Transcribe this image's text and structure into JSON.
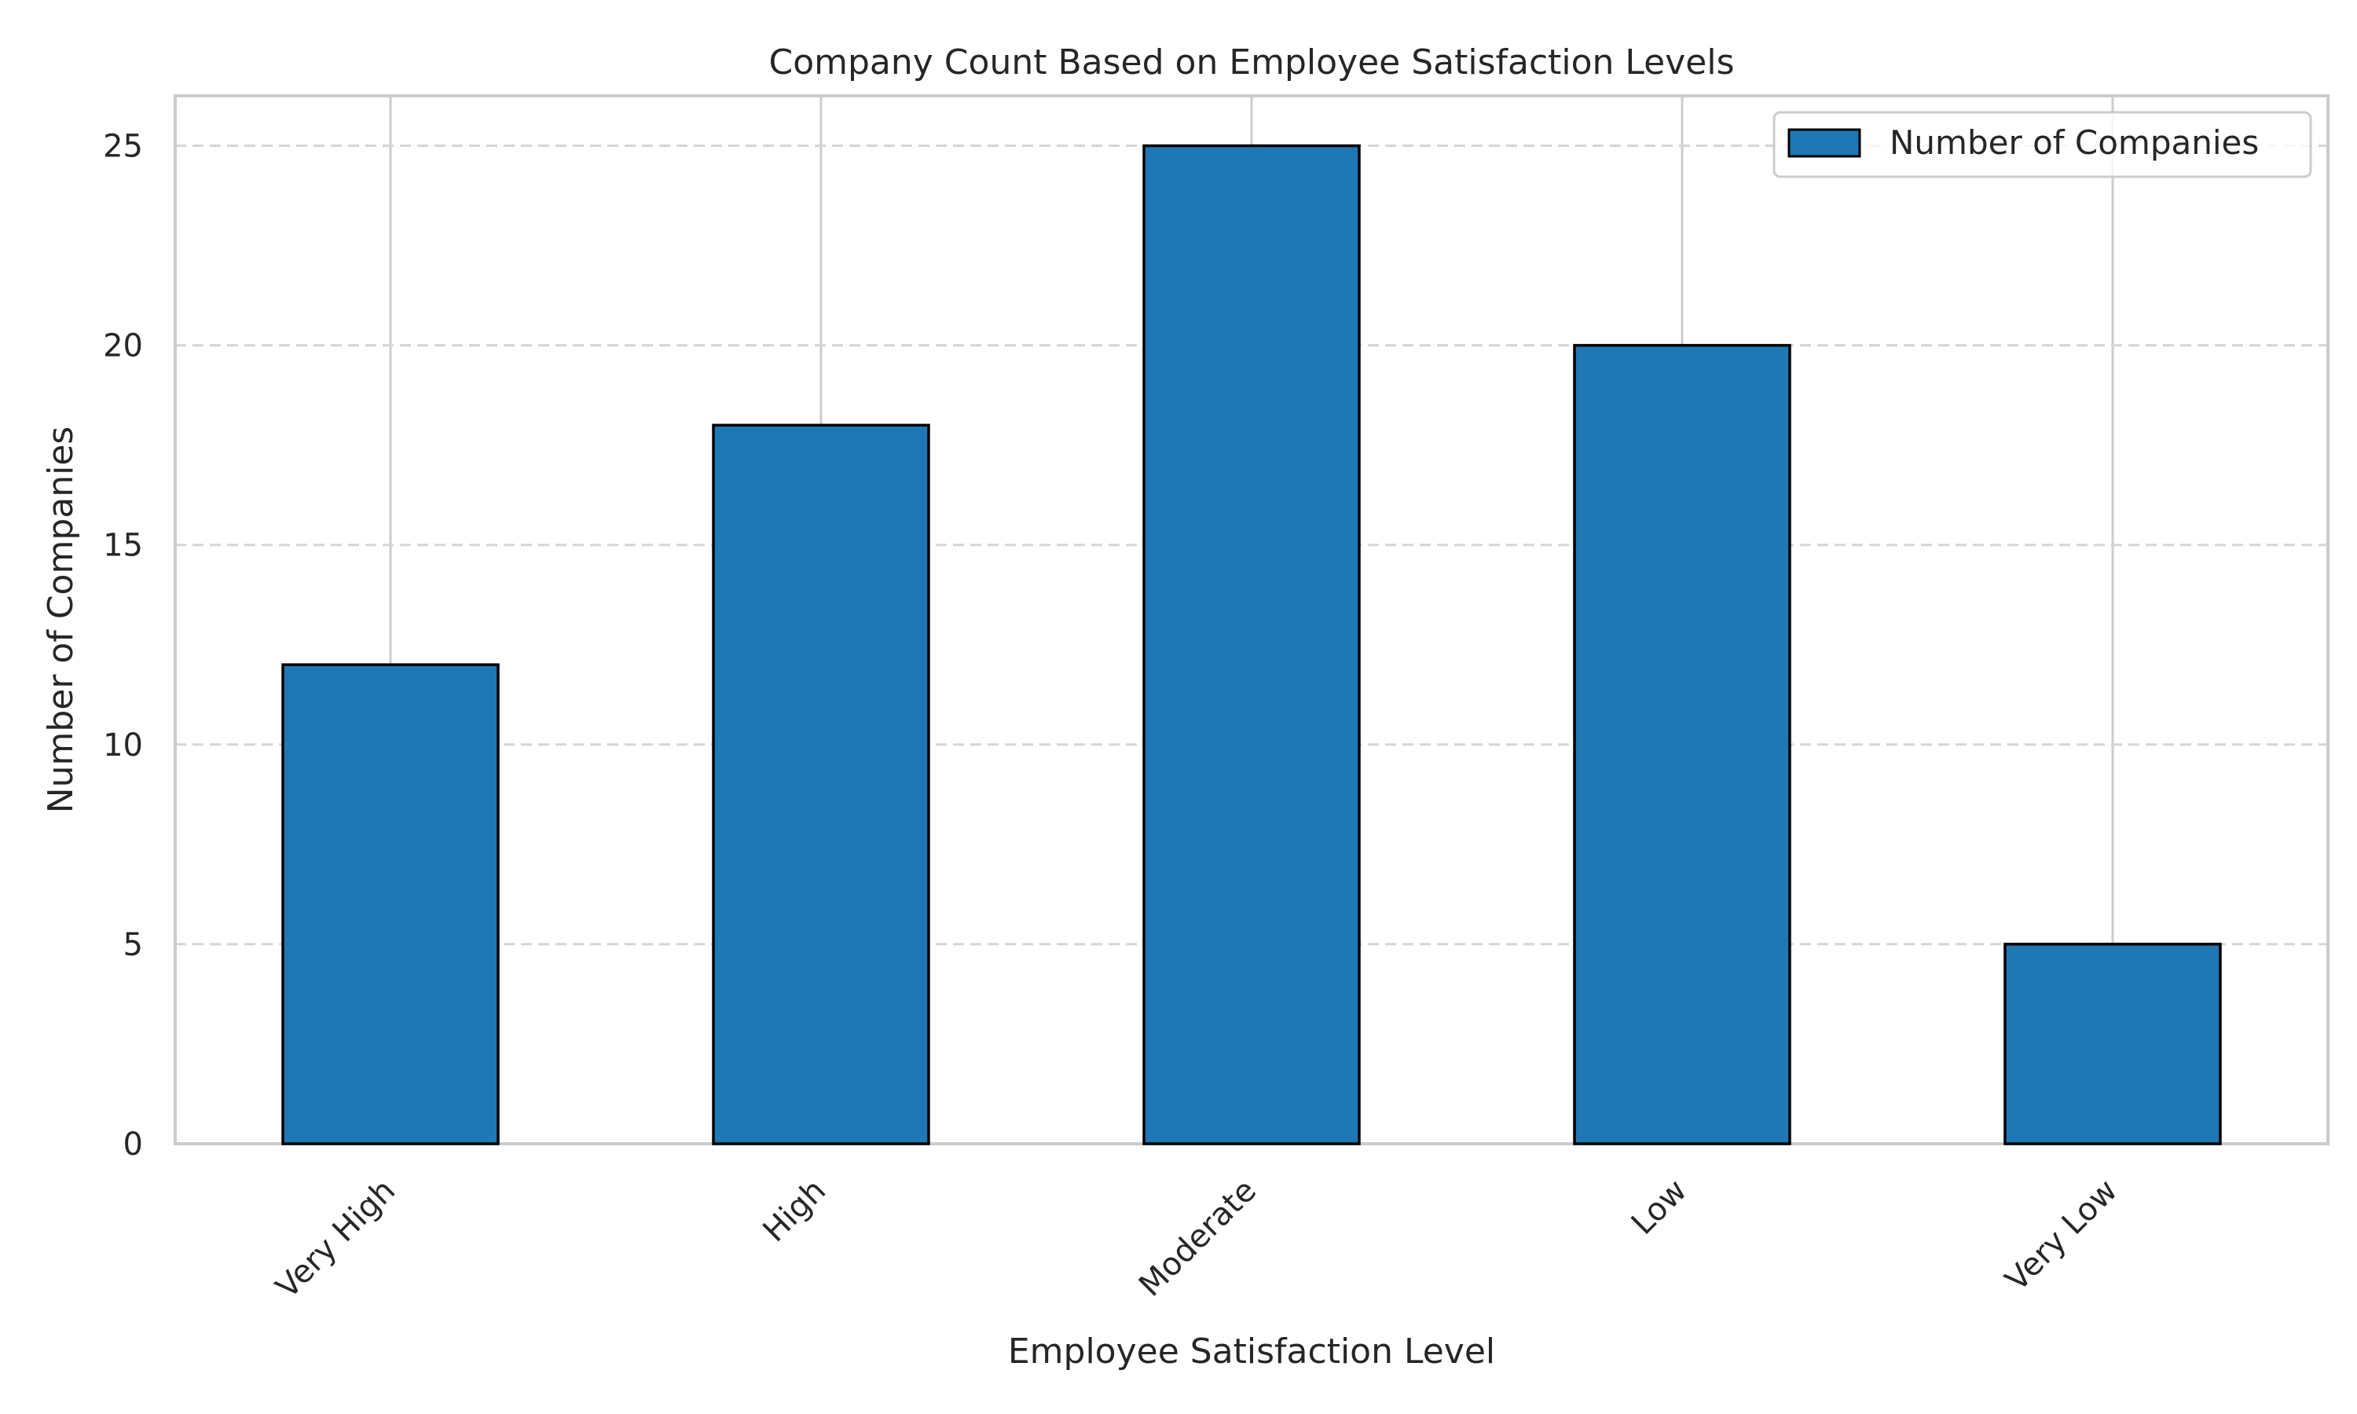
{
  "chart_data": {
    "type": "bar",
    "title": "Company Count Based on Employee Satisfaction Levels",
    "xlabel": "Employee Satisfaction Level",
    "ylabel": "Number of Companies",
    "categories": [
      "Very High",
      "High",
      "Moderate",
      "Low",
      "Very Low"
    ],
    "series": [
      {
        "name": "Number of Companies",
        "values": [
          12,
          18,
          25,
          20,
          5
        ],
        "color": "#1f77b4"
      }
    ],
    "ylim": [
      0,
      26.25
    ],
    "yticks": [
      0,
      5,
      10,
      15,
      20,
      25
    ],
    "grid": true,
    "legend_position": "top-right"
  }
}
